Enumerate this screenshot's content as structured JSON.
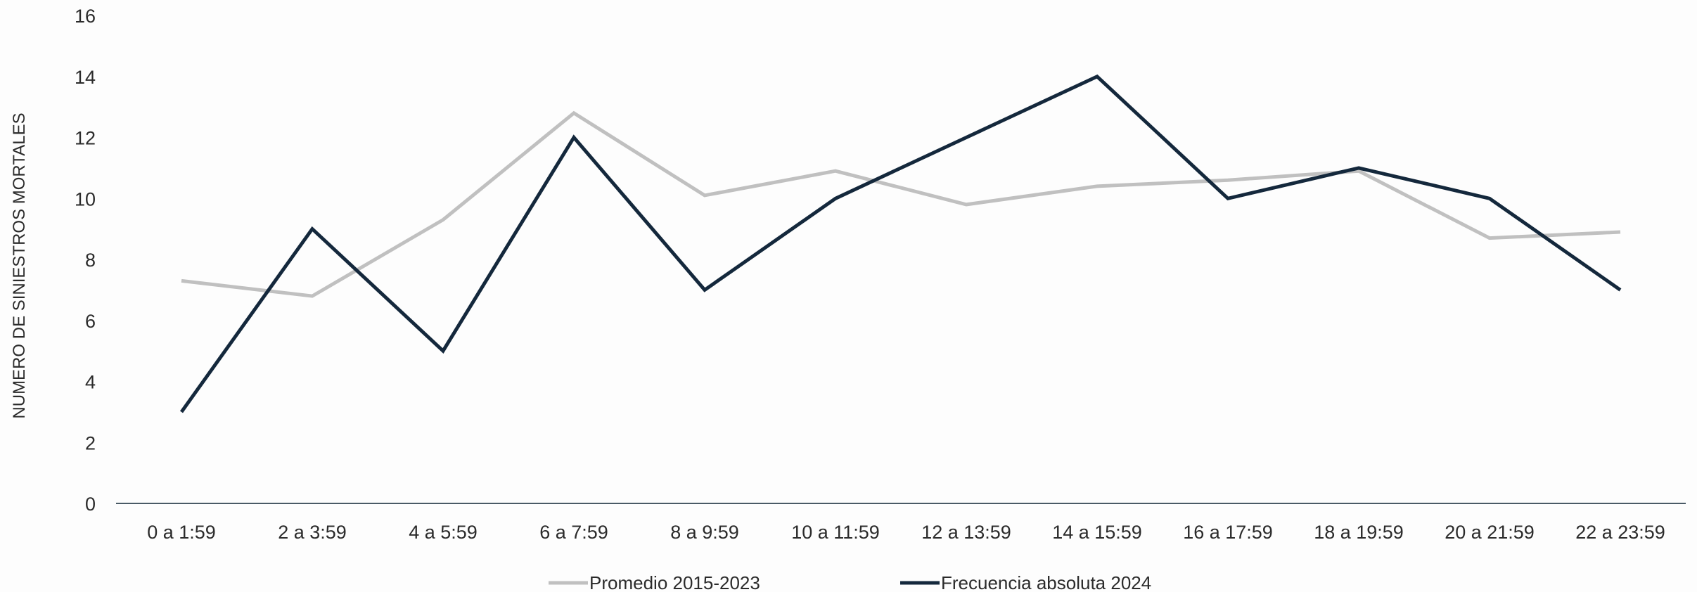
{
  "chart_data": {
    "type": "line",
    "title": "",
    "xlabel": "",
    "ylabel": "NUMERO DE SINIESTROS MORTALES",
    "ylim": [
      0,
      16
    ],
    "yticks": [
      0,
      2,
      4,
      6,
      8,
      10,
      12,
      14,
      16
    ],
    "grid": false,
    "legend_position": "bottom",
    "categories": [
      "0 a 1:59",
      "2 a 3:59",
      "4 a 5:59",
      "6 a 7:59",
      "8 a 9:59",
      "10 a 11:59",
      "12 a 13:59",
      "14 a 15:59",
      "16 a 17:59",
      "18 a 19:59",
      "20 a 21:59",
      "22 a 23:59"
    ],
    "series": [
      {
        "name": "Promedio 2015-2023",
        "color": "#c0c0c0",
        "values": [
          7.3,
          6.8,
          9.3,
          12.8,
          10.1,
          10.9,
          9.8,
          10.4,
          10.6,
          10.9,
          8.7,
          8.9
        ]
      },
      {
        "name": "Frecuencia absoluta 2024",
        "color": "#14283c",
        "values": [
          3,
          9,
          5,
          12,
          7,
          10,
          12,
          14,
          10,
          11,
          10,
          7
        ]
      }
    ],
    "axis_color": "#4a5a66"
  }
}
